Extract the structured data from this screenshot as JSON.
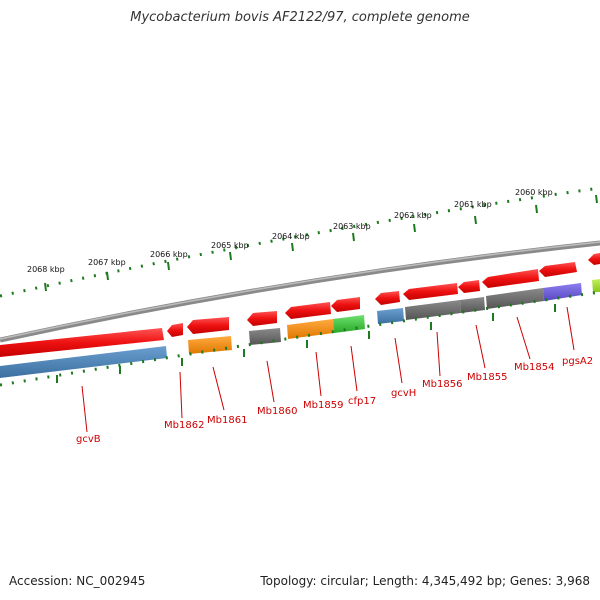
{
  "title": "Mycobacterium bovis AF2122/97, complete genome",
  "footer": {
    "accession": "Accession: NC_002945",
    "summary": "Topology: circular; Length: 4,345,492 bp; Genes: 3,968"
  },
  "colors": {
    "backbone": "#8a8a8a",
    "strand_arrow": "#ee1111",
    "tick": "#1e7a1e",
    "label": "#cc0000",
    "cog_blue": "#4a7fb0",
    "cog_orange": "#f08a10",
    "cog_gray": "#6a6a6a",
    "cog_green": "#3ac33a",
    "cog_purple": "#6a5ad0",
    "cog_lime": "#9ade2a"
  },
  "scale_labels": [
    "2068 kbp",
    "2067 kbp",
    "2066 kbp",
    "2065 kbp",
    "2064 kbp",
    "2063 kbp",
    "2062 kbp",
    "2061 kbp",
    "2060 kbp"
  ],
  "gene_labels": [
    "gcvB",
    "Mb1862",
    "Mb1861",
    "Mb1860",
    "Mb1859",
    "cfp17",
    "gcvH",
    "Mb1856",
    "Mb1855",
    "Mb1854",
    "pgsA2"
  ]
}
